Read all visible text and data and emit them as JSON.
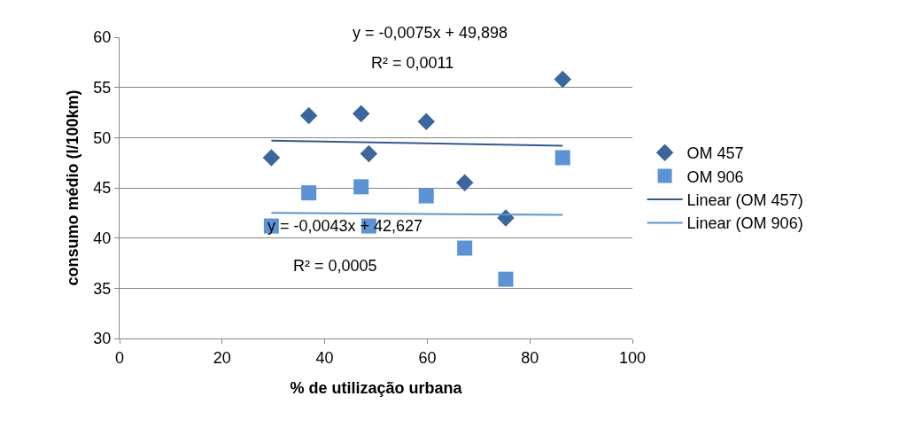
{
  "chart_data": {
    "type": "scatter",
    "xlabel": "% de utilização urbana",
    "ylabel": "consumo médio (l/100km)",
    "xlim": [
      0,
      100
    ],
    "xticks": [
      0,
      20,
      40,
      60,
      80,
      100
    ],
    "ylim": [
      30,
      60
    ],
    "yticks": [
      30,
      35,
      40,
      45,
      50,
      55,
      60
    ],
    "grid": "y",
    "legend": "right",
    "annotations": [
      "y = -0,0075x + 49,898",
      "R² = 0,0011",
      "y = -0,0043x + 42,627",
      "R² = 0,0005"
    ],
    "series": [
      {
        "name": "OM 457",
        "type": "scatter",
        "marker": "diamond",
        "color": "#3b679e",
        "x": [
          29.6,
          36.9,
          47.1,
          48.6,
          59.8,
          67.3,
          75.3,
          86.4
        ],
        "values": [
          48.0,
          52.2,
          52.4,
          48.4,
          51.6,
          45.5,
          42.0,
          55.8
        ]
      },
      {
        "name": "OM 906",
        "type": "scatter",
        "marker": "square",
        "color": "#5b93d6",
        "x": [
          29.6,
          36.9,
          47.1,
          48.6,
          59.8,
          67.3,
          75.3,
          86.4
        ],
        "values": [
          41.2,
          44.5,
          45.1,
          41.2,
          44.2,
          39.0,
          35.9,
          48.0
        ]
      },
      {
        "name": "Linear (OM 457)",
        "type": "line",
        "marker": "none",
        "line_style": "solid",
        "color": "#2f5b95",
        "x": [
          29.6,
          86.4
        ],
        "values": [
          49.7,
          49.2
        ]
      },
      {
        "name": "Linear (OM 906)",
        "type": "line",
        "marker": "none",
        "line_style": "solid",
        "color": "#5b93d6",
        "x": [
          29.6,
          86.4
        ],
        "values": [
          42.5,
          42.3
        ]
      }
    ]
  }
}
